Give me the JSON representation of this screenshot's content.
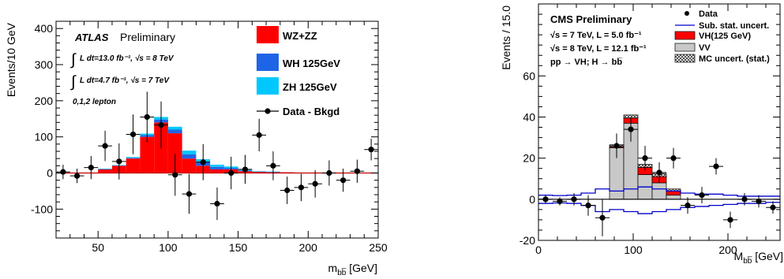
{
  "chart_data": [
    {
      "type": "bar",
      "experiment": "ATLAS",
      "label_main": "ATLAS",
      "label_sub": "Preliminary",
      "annotations": [
        "L dt=13.0 fb⁻¹,  √s = 8 TeV",
        "L dt=4.7 fb⁻¹,  √s = 7 TeV",
        "0,1,2 lepton"
      ],
      "xlabel": "m_bb [GeV]",
      "ylabel": "Events/10 GeV",
      "xlim": [
        20,
        250
      ],
      "ylim": [
        -180,
        420
      ],
      "xticks": [
        50,
        100,
        150,
        200,
        250
      ],
      "yticks": [
        -100,
        0,
        100,
        200,
        300,
        400
      ],
      "bin_edges": [
        20,
        30,
        40,
        50,
        60,
        70,
        80,
        90,
        100,
        110,
        120,
        130,
        140,
        150,
        160,
        170,
        180,
        190,
        200,
        210,
        220,
        230,
        240,
        250
      ],
      "series": [
        {
          "name": "WZ+ZZ",
          "color": "#ff0000",
          "values": [
            0,
            0,
            0,
            10,
            20,
            40,
            100,
            140,
            110,
            40,
            20,
            10,
            10,
            5,
            3,
            2,
            2,
            1,
            1,
            1,
            0,
            0,
            0
          ]
        },
        {
          "name": "WH 125GeV",
          "color": "#1e64e6",
          "values": [
            0,
            0,
            0,
            1,
            1,
            2,
            5,
            8,
            10,
            12,
            10,
            7,
            4,
            2,
            1,
            1,
            0,
            0,
            0,
            0,
            0,
            0,
            0
          ]
        },
        {
          "name": "ZH 125GeV",
          "color": "#00c8ff",
          "values": [
            0,
            0,
            0,
            1,
            1,
            2,
            4,
            7,
            8,
            10,
            8,
            6,
            4,
            2,
            1,
            1,
            0,
            0,
            0,
            0,
            0,
            0,
            0
          ]
        }
      ],
      "data_series": {
        "name": "Data - Bkgd",
        "x": [
          25,
          35,
          45,
          55,
          65,
          75,
          85,
          95,
          105,
          115,
          125,
          135,
          145,
          155,
          165,
          175,
          185,
          195,
          205,
          215,
          225,
          235,
          245
        ],
        "y": [
          3,
          -8,
          15,
          75,
          32,
          107,
          155,
          133,
          -5,
          -58,
          30,
          -85,
          0,
          10,
          105,
          20,
          -48,
          -40,
          -30,
          0,
          -20,
          5,
          65
        ],
        "err": [
          20,
          20,
          32,
          42,
          50,
          55,
          70,
          65,
          58,
          55,
          50,
          45,
          45,
          40,
          45,
          40,
          38,
          38,
          38,
          35,
          32,
          32,
          30
        ]
      }
    },
    {
      "type": "bar",
      "experiment": "CMS",
      "title": "CMS Preliminary",
      "annotations": [
        "√s = 7 TeV, L = 5.0 fb⁻¹",
        "√s = 8 TeV, L = 12.1 fb⁻¹",
        "pp → VH; H → bb̅"
      ],
      "xlabel": "M_bb [GeV]",
      "ylabel": "Events / 15.0",
      "xlim": [
        0,
        255
      ],
      "ylim": [
        -20,
        95
      ],
      "xticks": [
        0,
        100,
        200
      ],
      "yticks": [
        -20,
        0,
        20,
        40,
        60
      ],
      "bin_edges": [
        0,
        15,
        30,
        45,
        60,
        75,
        90,
        105,
        120,
        135,
        150,
        165,
        180,
        195,
        210,
        225,
        240,
        255
      ],
      "series": [
        {
          "name": "VV",
          "color": "#c8c8c8",
          "values": [
            0,
            0,
            0,
            0,
            0,
            25,
            37,
            12,
            8,
            2,
            0,
            0,
            0,
            0,
            0,
            0,
            0
          ]
        },
        {
          "name": "VH(125 GeV)",
          "color": "#ff0000",
          "values": [
            0,
            0,
            0,
            0,
            0,
            0.5,
            2.5,
            3.5,
            3,
            2,
            0,
            0,
            0,
            0,
            0,
            0,
            0
          ]
        },
        {
          "name": "MC uncert. (stat.)",
          "color": "#555555",
          "values": [
            0,
            0,
            0,
            0,
            0,
            1,
            1.5,
            1.5,
            1.5,
            1,
            0,
            0,
            0,
            0,
            0,
            0,
            0
          ]
        }
      ],
      "uncertainty_band": {
        "name": "Sub. stat. uncert.",
        "color": "#0000cc",
        "upper": [
          2,
          1.8,
          2,
          3,
          5,
          4,
          5,
          6,
          5,
          4,
          3,
          2.5,
          2.5,
          2,
          1.5,
          1.5,
          1.5
        ],
        "lower": [
          -2,
          -1.8,
          -2,
          -3,
          -6,
          -5,
          -6,
          -7,
          -6,
          -5,
          -4,
          -3.5,
          -3,
          -2.5,
          -2,
          -2,
          -1.5
        ]
      },
      "data_series": {
        "name": "Data",
        "x": [
          7.5,
          22.5,
          37.5,
          52.5,
          67.5,
          82.5,
          97.5,
          112.5,
          127.5,
          142.5,
          157.5,
          172.5,
          187.5,
          202.5,
          217.5,
          232.5,
          247.5
        ],
        "y": [
          0,
          -1,
          0,
          -3,
          -9,
          26,
          34,
          20,
          13,
          20,
          -3,
          2,
          16,
          -10,
          0,
          -1,
          -4
        ],
        "err": [
          2,
          2,
          3,
          5,
          9,
          6,
          6,
          6,
          5,
          5,
          4,
          4,
          4,
          4,
          3,
          3,
          3
        ]
      }
    }
  ]
}
